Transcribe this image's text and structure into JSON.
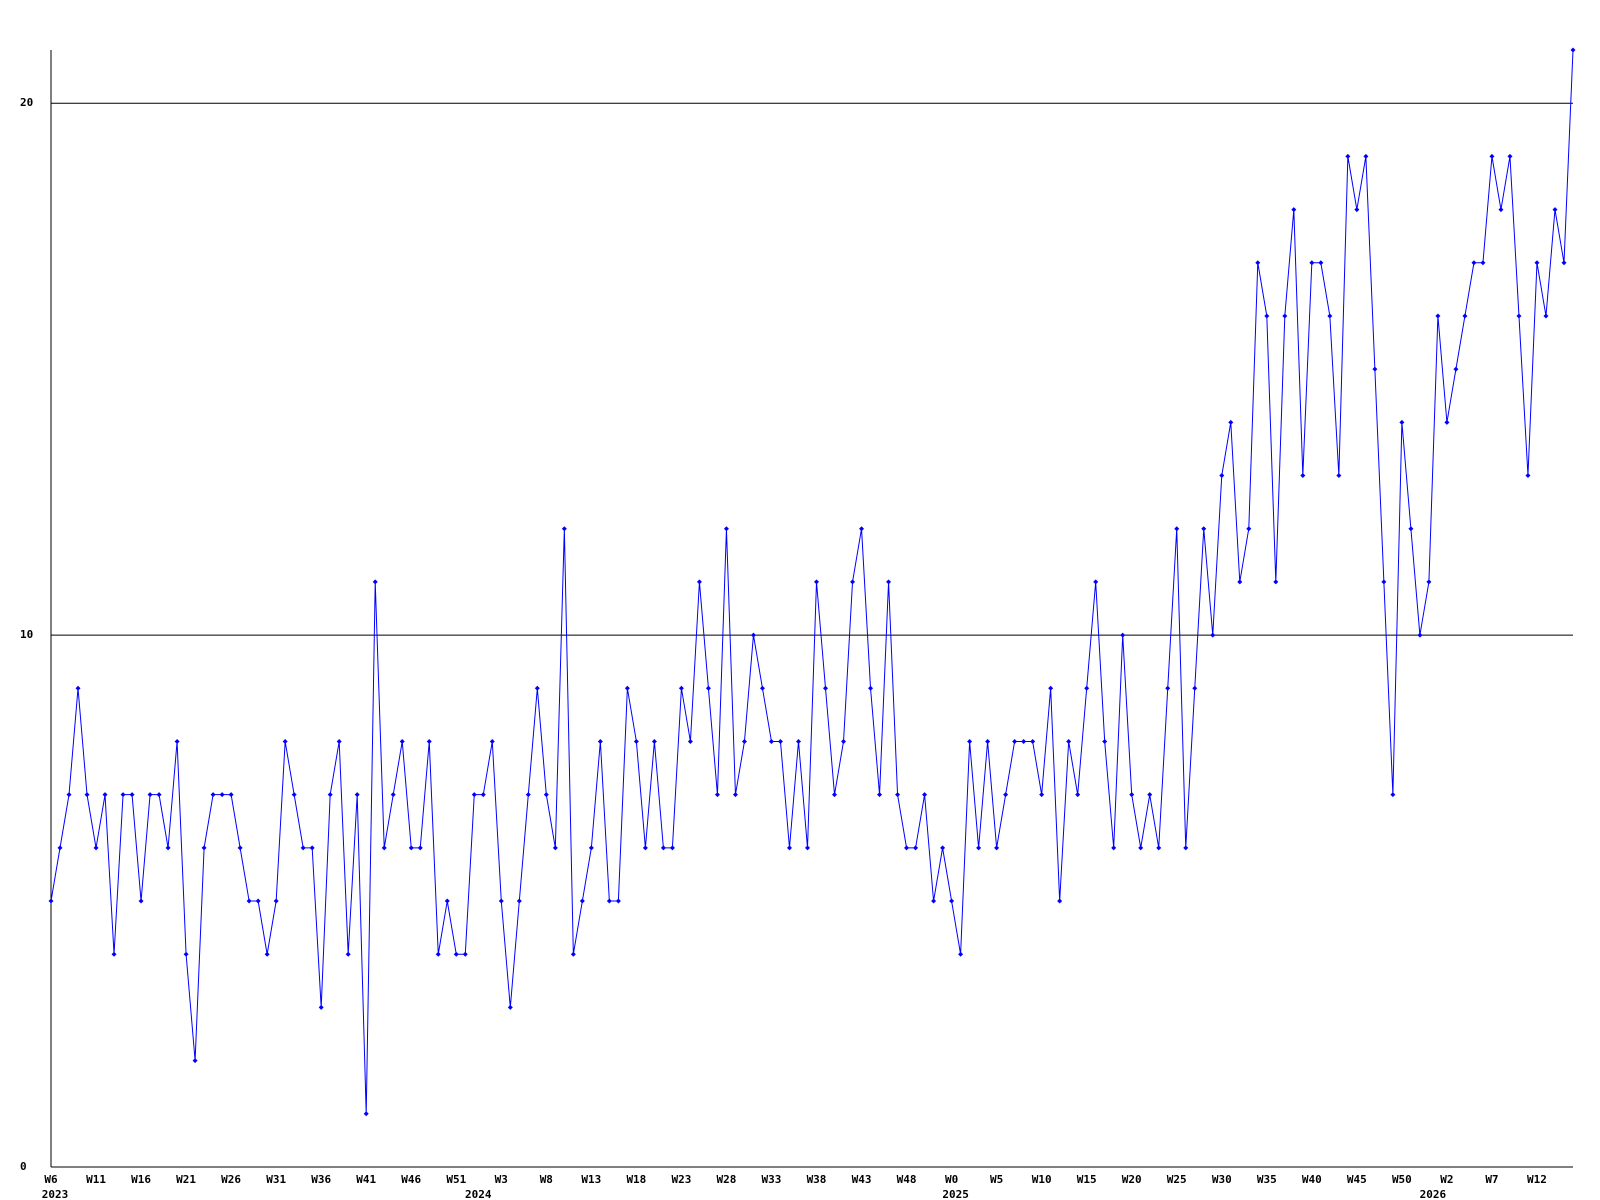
{
  "chart_data": {
    "type": "line",
    "categories": [
      "W6",
      null,
      null,
      null,
      null,
      "W11",
      null,
      null,
      null,
      null,
      "W16",
      null,
      null,
      null,
      null,
      "W21",
      null,
      null,
      null,
      null,
      "W26",
      null,
      null,
      null,
      null,
      "W31",
      null,
      null,
      null,
      null,
      "W36",
      null,
      null,
      null,
      null,
      "W41",
      null,
      null,
      null,
      null,
      "W46",
      null,
      null,
      null,
      null,
      "W51",
      null,
      null,
      null,
      null,
      "W3",
      null,
      null,
      null,
      null,
      "W8",
      null,
      null,
      null,
      null,
      "W13",
      null,
      null,
      null,
      null,
      "W18",
      null,
      null,
      null,
      null,
      "W23",
      null,
      null,
      null,
      null,
      "W28",
      null,
      null,
      null,
      null,
      "W33",
      null,
      null,
      null,
      null,
      "W38",
      null,
      null,
      null,
      null,
      "W43",
      null,
      null,
      null,
      null,
      "W48",
      null,
      null,
      null,
      null,
      "W0",
      null,
      null,
      null,
      null,
      "W5",
      null,
      null,
      null,
      null,
      "W10",
      null,
      null,
      null,
      null,
      "W15",
      null,
      null,
      null,
      null,
      "W20",
      null,
      null,
      null,
      null,
      "W25",
      null,
      null,
      null,
      null,
      "W30",
      null,
      null,
      null,
      null,
      "W35",
      null,
      null,
      null,
      null,
      "W40",
      null,
      null,
      null,
      null,
      "W45",
      null,
      null,
      null,
      null,
      "W50",
      null,
      null,
      null,
      null,
      "W2",
      null,
      null,
      null,
      null,
      "W7",
      null,
      null,
      null,
      null,
      "W12",
      null,
      null,
      null,
      null
    ],
    "years": [
      "2023",
      null,
      null,
      null,
      null,
      null,
      null,
      null,
      null,
      null,
      null,
      null,
      null,
      null,
      null,
      null,
      null,
      null,
      null,
      null,
      null,
      null,
      null,
      null,
      null,
      null,
      null,
      null,
      null,
      null,
      null,
      null,
      null,
      null,
      null,
      null,
      null,
      null,
      null,
      null,
      null,
      null,
      null,
      null,
      null,
      null,
      null,
      "2024",
      null,
      null,
      null,
      null,
      null,
      null,
      null,
      null,
      null,
      null,
      null,
      null,
      null,
      null,
      null,
      null,
      null,
      null,
      null,
      null,
      null,
      null,
      null,
      null,
      null,
      null,
      null,
      null,
      null,
      null,
      null,
      null,
      null,
      null,
      null,
      null,
      null,
      null,
      null,
      null,
      null,
      null,
      null,
      null,
      null,
      null,
      null,
      null,
      null,
      null,
      null,
      null,
      "2025",
      null,
      null,
      null,
      null,
      null,
      null,
      null,
      null,
      null,
      null,
      null,
      null,
      null,
      null,
      null,
      null,
      null,
      null,
      null,
      null,
      null,
      null,
      null,
      null,
      null,
      null,
      null,
      null,
      null,
      null,
      null,
      null,
      null,
      null,
      null,
      null,
      null,
      null,
      null,
      null,
      null,
      null,
      null,
      null,
      null,
      null,
      null,
      null,
      null,
      null,
      null,
      null,
      "2026",
      null,
      null,
      null,
      null,
      null,
      null,
      null,
      null,
      null,
      null,
      null,
      null,
      null,
      null,
      null,
      null
    ],
    "series": [
      {
        "color": "#0000ff",
        "values": [
          5,
          6,
          7,
          9,
          7,
          6,
          7,
          4,
          7,
          7,
          5,
          7,
          7,
          6,
          8,
          4,
          2,
          6,
          7,
          7,
          7,
          6,
          5,
          5,
          4,
          5,
          8,
          7,
          6,
          6,
          3,
          7,
          8,
          4,
          7,
          1,
          11,
          6,
          7,
          8,
          6,
          6,
          8,
          4,
          5,
          4,
          4,
          7,
          7,
          8,
          5,
          3,
          5,
          7,
          9,
          7,
          6,
          12,
          4,
          5,
          6,
          8,
          5,
          5,
          9,
          8,
          6,
          8,
          6,
          6,
          9,
          8,
          11,
          9,
          7,
          12,
          7,
          8,
          10,
          9,
          8,
          8,
          6,
          8,
          6,
          11,
          9,
          7,
          8,
          11,
          12,
          9,
          7,
          11,
          7,
          6,
          6,
          7,
          5,
          6,
          5,
          4,
          8,
          6,
          8,
          6,
          7,
          8,
          8,
          8,
          7,
          9,
          5,
          8,
          7,
          9,
          11,
          8,
          6,
          10,
          7,
          6,
          7,
          6,
          9,
          12,
          6,
          9,
          12,
          10,
          13,
          14,
          11,
          12,
          17,
          16,
          11,
          16,
          18,
          13,
          17,
          17,
          16,
          13,
          19,
          18,
          19,
          15,
          11,
          7,
          14,
          12,
          10,
          11,
          16,
          14,
          15,
          16,
          17,
          17,
          19,
          18,
          19,
          16,
          13,
          17,
          16,
          18,
          17,
          21
        ]
      }
    ],
    "ylim": [
      0,
      21
    ],
    "yticks": [
      0,
      10,
      20
    ],
    "grid": true
  }
}
